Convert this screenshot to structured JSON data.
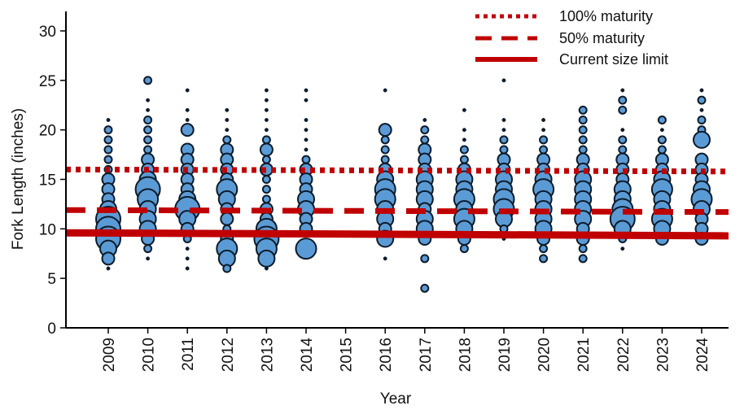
{
  "chart_data": {
    "type": "scatter",
    "subtype": "bubble",
    "title": "",
    "xlabel": "Year",
    "ylabel": "Fork Length (inches)",
    "ylim": [
      0,
      32
    ],
    "yticks": [
      0,
      5,
      10,
      15,
      20,
      25,
      30
    ],
    "categories": [
      "2009",
      "2010",
      "2011",
      "2012",
      "2013",
      "2014",
      "2015",
      "2016",
      "2017",
      "2018",
      "2019",
      "2020",
      "2021",
      "2022",
      "2023",
      "2024"
    ],
    "bubble_color": "#5b9bd5",
    "bubble_edge_color": "#0d1b2a",
    "line_color": "#c00000",
    "bubble_size_note": "size class 1 (few fish) to 6 (many fish)",
    "series": [
      {
        "year": "2009",
        "points": [
          [
            6,
            1
          ],
          [
            7,
            3
          ],
          [
            8,
            4
          ],
          [
            9,
            6
          ],
          [
            10,
            6
          ],
          [
            11,
            6
          ],
          [
            12,
            4
          ],
          [
            13,
            3
          ],
          [
            14,
            3
          ],
          [
            15,
            3
          ],
          [
            16,
            2
          ],
          [
            17,
            2
          ],
          [
            18,
            2
          ],
          [
            19,
            2
          ],
          [
            20,
            2
          ],
          [
            21,
            1
          ]
        ]
      },
      {
        "year": "2010",
        "points": [
          [
            7,
            1
          ],
          [
            8,
            2
          ],
          [
            9,
            3
          ],
          [
            10,
            4
          ],
          [
            11,
            4
          ],
          [
            12,
            4
          ],
          [
            13,
            5
          ],
          [
            14,
            6
          ],
          [
            15,
            4
          ],
          [
            16,
            3
          ],
          [
            17,
            3
          ],
          [
            18,
            2
          ],
          [
            19,
            2
          ],
          [
            20,
            2
          ],
          [
            21,
            2
          ],
          [
            22,
            1
          ],
          [
            23,
            1
          ],
          [
            25,
            2
          ]
        ]
      },
      {
        "year": "2011",
        "points": [
          [
            6,
            1
          ],
          [
            7,
            1
          ],
          [
            8,
            1
          ],
          [
            9,
            2
          ],
          [
            10,
            3
          ],
          [
            11,
            4
          ],
          [
            12,
            6
          ],
          [
            13,
            4
          ],
          [
            14,
            3
          ],
          [
            15,
            3
          ],
          [
            16,
            3
          ],
          [
            17,
            3
          ],
          [
            18,
            3
          ],
          [
            20,
            3
          ],
          [
            21,
            1
          ],
          [
            22,
            1
          ],
          [
            24,
            1
          ]
        ]
      },
      {
        "year": "2012",
        "points": [
          [
            6,
            2
          ],
          [
            7,
            4
          ],
          [
            8,
            5
          ],
          [
            9,
            3
          ],
          [
            10,
            2
          ],
          [
            11,
            3
          ],
          [
            12,
            3
          ],
          [
            13,
            4
          ],
          [
            14,
            5
          ],
          [
            15,
            3
          ],
          [
            16,
            3
          ],
          [
            17,
            3
          ],
          [
            18,
            3
          ],
          [
            19,
            2
          ],
          [
            20,
            1
          ],
          [
            21,
            1
          ],
          [
            22,
            1
          ]
        ]
      },
      {
        "year": "2013",
        "points": [
          [
            6,
            1
          ],
          [
            7,
            4
          ],
          [
            8,
            5
          ],
          [
            9,
            6
          ],
          [
            10,
            5
          ],
          [
            11,
            3
          ],
          [
            12,
            3
          ],
          [
            13,
            2
          ],
          [
            14,
            2
          ],
          [
            15,
            2
          ],
          [
            16,
            3
          ],
          [
            17,
            2
          ],
          [
            18,
            3
          ],
          [
            19,
            2
          ],
          [
            20,
            1
          ],
          [
            21,
            1
          ],
          [
            22,
            1
          ],
          [
            23,
            1
          ],
          [
            24,
            1
          ]
        ]
      },
      {
        "year": "2014",
        "points": [
          [
            8,
            5
          ],
          [
            10,
            3
          ],
          [
            11,
            3
          ],
          [
            12,
            4
          ],
          [
            13,
            4
          ],
          [
            14,
            3
          ],
          [
            15,
            3
          ],
          [
            16,
            3
          ],
          [
            17,
            2
          ],
          [
            18,
            1
          ],
          [
            19,
            1
          ],
          [
            20,
            1
          ],
          [
            21,
            1
          ],
          [
            23,
            1
          ],
          [
            24,
            1
          ]
        ]
      },
      {
        "year": "2015",
        "points": []
      },
      {
        "year": "2016",
        "points": [
          [
            7,
            1
          ],
          [
            9,
            4
          ],
          [
            10,
            3
          ],
          [
            11,
            4
          ],
          [
            12,
            4
          ],
          [
            13,
            5
          ],
          [
            14,
            5
          ],
          [
            15,
            4
          ],
          [
            16,
            3
          ],
          [
            17,
            2
          ],
          [
            18,
            2
          ],
          [
            19,
            2
          ],
          [
            20,
            3
          ],
          [
            24,
            1
          ]
        ]
      },
      {
        "year": "2017",
        "points": [
          [
            4,
            2
          ],
          [
            7,
            2
          ],
          [
            9,
            3
          ],
          [
            10,
            4
          ],
          [
            11,
            4
          ],
          [
            12,
            3
          ],
          [
            13,
            4
          ],
          [
            14,
            4
          ],
          [
            15,
            4
          ],
          [
            16,
            3
          ],
          [
            17,
            3
          ],
          [
            18,
            3
          ],
          [
            19,
            2
          ],
          [
            20,
            2
          ],
          [
            21,
            1
          ]
        ]
      },
      {
        "year": "2018",
        "points": [
          [
            8,
            2
          ],
          [
            9,
            3
          ],
          [
            10,
            4
          ],
          [
            11,
            5
          ],
          [
            12,
            4
          ],
          [
            13,
            5
          ],
          [
            14,
            4
          ],
          [
            15,
            4
          ],
          [
            16,
            3
          ],
          [
            17,
            2
          ],
          [
            18,
            2
          ],
          [
            19,
            1
          ],
          [
            20,
            1
          ],
          [
            22,
            1
          ]
        ]
      },
      {
        "year": "2019",
        "points": [
          [
            9,
            1
          ],
          [
            10,
            2
          ],
          [
            11,
            4
          ],
          [
            12,
            5
          ],
          [
            13,
            5
          ],
          [
            14,
            4
          ],
          [
            15,
            4
          ],
          [
            16,
            3
          ],
          [
            17,
            3
          ],
          [
            18,
            2
          ],
          [
            19,
            2
          ],
          [
            20,
            1
          ],
          [
            21,
            1
          ],
          [
            25,
            1
          ]
        ]
      },
      {
        "year": "2020",
        "points": [
          [
            7,
            2
          ],
          [
            8,
            2
          ],
          [
            9,
            3
          ],
          [
            10,
            4
          ],
          [
            11,
            4
          ],
          [
            12,
            4
          ],
          [
            13,
            4
          ],
          [
            14,
            5
          ],
          [
            15,
            4
          ],
          [
            16,
            3
          ],
          [
            17,
            3
          ],
          [
            18,
            2
          ],
          [
            19,
            2
          ],
          [
            20,
            1
          ],
          [
            21,
            1
          ]
        ]
      },
      {
        "year": "2021",
        "points": [
          [
            7,
            2
          ],
          [
            8,
            2
          ],
          [
            9,
            3
          ],
          [
            10,
            3
          ],
          [
            11,
            4
          ],
          [
            12,
            4
          ],
          [
            13,
            4
          ],
          [
            14,
            4
          ],
          [
            15,
            4
          ],
          [
            16,
            3
          ],
          [
            17,
            3
          ],
          [
            18,
            2
          ],
          [
            19,
            2
          ],
          [
            20,
            2
          ],
          [
            21,
            2
          ],
          [
            22,
            2
          ]
        ]
      },
      {
        "year": "2022",
        "points": [
          [
            8,
            1
          ],
          [
            9,
            2
          ],
          [
            10,
            4
          ],
          [
            11,
            6
          ],
          [
            12,
            5
          ],
          [
            13,
            4
          ],
          [
            14,
            4
          ],
          [
            15,
            3
          ],
          [
            16,
            3
          ],
          [
            17,
            3
          ],
          [
            18,
            2
          ],
          [
            19,
            2
          ],
          [
            20,
            1
          ],
          [
            22,
            2
          ],
          [
            23,
            2
          ],
          [
            24,
            1
          ]
        ]
      },
      {
        "year": "2023",
        "points": [
          [
            9,
            3
          ],
          [
            10,
            4
          ],
          [
            11,
            5
          ],
          [
            12,
            4
          ],
          [
            13,
            4
          ],
          [
            14,
            5
          ],
          [
            15,
            4
          ],
          [
            16,
            3
          ],
          [
            17,
            3
          ],
          [
            18,
            2
          ],
          [
            19,
            2
          ],
          [
            20,
            1
          ],
          [
            21,
            2
          ]
        ]
      },
      {
        "year": "2024",
        "points": [
          [
            9,
            3
          ],
          [
            10,
            3
          ],
          [
            11,
            3
          ],
          [
            12,
            4
          ],
          [
            13,
            5
          ],
          [
            14,
            4
          ],
          [
            15,
            3
          ],
          [
            16,
            3
          ],
          [
            17,
            3
          ],
          [
            19,
            4
          ],
          [
            20,
            2
          ],
          [
            21,
            2
          ],
          [
            22,
            1
          ],
          [
            23,
            2
          ],
          [
            24,
            1
          ]
        ]
      }
    ],
    "reference_lines": [
      {
        "name": "100% maturity",
        "style": "dotted",
        "y_start": 16.0,
        "y_end": 15.8
      },
      {
        "name": "50% maturity",
        "style": "dashed",
        "y_start": 11.9,
        "y_end": 11.7
      },
      {
        "name": "Current size limit",
        "style": "solid",
        "y_start": 9.6,
        "y_end": 9.3
      }
    ],
    "legend": {
      "placement": "top-right",
      "entries": [
        "100% maturity",
        "50% maturity",
        "Current size limit"
      ]
    },
    "grid": false
  }
}
